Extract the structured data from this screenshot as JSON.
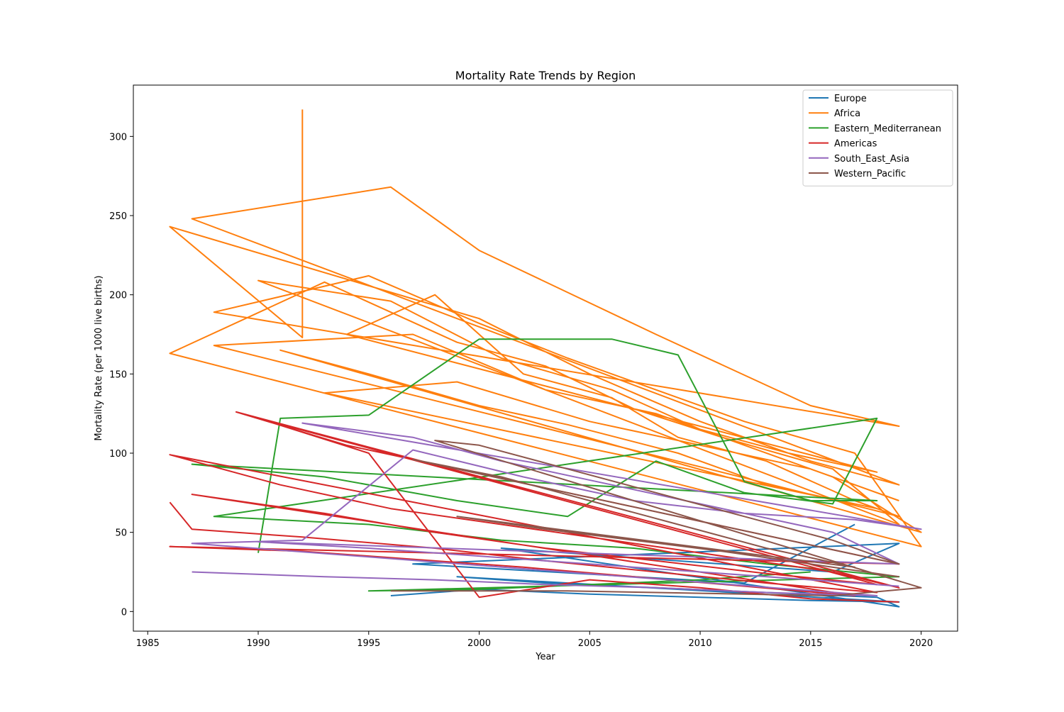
{
  "chart_data": {
    "type": "line",
    "title": "Mortality Rate Trends by Region",
    "xlabel": "Year",
    "ylabel": "Mortality Rate (per 1000 live births)",
    "xlim": [
      1984.35,
      2021.65
    ],
    "ylim": [
      -12.4,
      332.4
    ],
    "xticks": [
      1985,
      1990,
      1995,
      2000,
      2005,
      2010,
      2015,
      2020
    ],
    "yticks": [
      0,
      50,
      100,
      150,
      200,
      250,
      300
    ],
    "grid": false,
    "legend_position": "upper right",
    "series": [
      {
        "name": "Europe",
        "color": "#1f77b4",
        "x": [
          1996,
          2000,
          2005,
          2010,
          2015,
          2019,
          1999,
          2003,
          2008,
          2013,
          2018,
          2019,
          2001,
          2006,
          2011,
          2016,
          2019,
          1997,
          2002,
          2007,
          2012,
          2017
        ],
        "y": [
          10,
          14,
          11,
          9,
          7,
          6,
          22,
          18,
          15,
          12,
          9,
          3,
          40,
          35,
          30,
          25,
          43,
          30,
          26,
          22,
          18,
          55
        ]
      },
      {
        "name": "Africa",
        "color": "#ff7f0e",
        "x": [
          1992,
          1992,
          1986,
          2000,
          2005,
          2010,
          2015,
          2019,
          1987,
          1996,
          2000,
          2008,
          2015,
          2019,
          1988,
          1995,
          2000,
          2004,
          2008,
          2012,
          2017,
          2020,
          1986,
          1993,
          1999,
          2003,
          2007,
          2011,
          2016,
          2019,
          1990,
          1996,
          2001,
          2006,
          2010,
          2014,
          2018,
          1994,
          1998,
          2002,
          2006,
          2009,
          2013,
          2017,
          2019,
          1988,
          1997,
          2003,
          2008,
          2012,
          2016,
          2020,
          1991,
          1995,
          2000,
          2004,
          2009,
          2013,
          2018,
          1993,
          1999,
          2005,
          2010,
          2015,
          2019
        ],
        "y": [
          317,
          173,
          243,
          185,
          150,
          120,
          95,
          80,
          248,
          268,
          228,
          175,
          130,
          117,
          189,
          212,
          182,
          160,
          140,
          120,
          100,
          41,
          163,
          208,
          170,
          155,
          128,
          110,
          90,
          55,
          209,
          196,
          160,
          140,
          115,
          100,
          88,
          175,
          200,
          150,
          135,
          110,
          95,
          70,
          60,
          168,
          175,
          140,
          125,
          105,
          85,
          50,
          165,
          150,
          130,
          118,
          100,
          80,
          65,
          138,
          145,
          120,
          105,
          90,
          70
        ]
      },
      {
        "name": "Eastern_Mediterranean",
        "color": "#2ca02c",
        "x": [
          1990,
          1991,
          1995,
          2000,
          2006,
          2009,
          2012,
          2015,
          2018,
          1987,
          1993,
          1999,
          2004,
          2008,
          2012,
          2016,
          2018,
          1988,
          1995,
          2001,
          2007,
          2013,
          2019,
          1995,
          2000,
          2005,
          2010,
          2015
        ],
        "y": [
          37,
          122,
          124,
          172,
          172,
          162,
          82,
          70,
          70,
          93,
          85,
          70,
          60,
          95,
          75,
          68,
          122,
          60,
          55,
          45,
          40,
          30,
          22,
          13,
          14,
          17,
          20,
          25
        ]
      },
      {
        "name": "Americas",
        "color": "#d62728",
        "x": [
          1986,
          1987,
          1992,
          1998,
          2003,
          2008,
          2013,
          2018,
          1986,
          1991,
          1996,
          2001,
          2006,
          2011,
          2016,
          2019,
          1989,
          1994,
          1999,
          2004,
          2009,
          2014,
          2019,
          1986,
          1992,
          1997,
          2002,
          2007,
          2012,
          2017,
          1987,
          1993,
          1998,
          2003,
          2008,
          2013,
          2018,
          1990,
          1995,
          2000,
          2005,
          2010,
          2015,
          2019
        ],
        "y": [
          69,
          52,
          47,
          40,
          32,
          25,
          18,
          12,
          99,
          80,
          65,
          55,
          45,
          35,
          25,
          15,
          126,
          105,
          90,
          75,
          60,
          45,
          30,
          41,
          38,
          33,
          28,
          22,
          16,
          10,
          74,
          62,
          50,
          40,
          32,
          24,
          17,
          122,
          100,
          9,
          20,
          15,
          8,
          6
        ]
      },
      {
        "name": "South_East_Asia",
        "color": "#9467bd",
        "x": [
          1987,
          1993,
          1998,
          2003,
          2008,
          2013,
          2018,
          1987,
          1992,
          1997,
          2002,
          2007,
          2012,
          2017,
          2020,
          1992,
          1997,
          2001,
          2006,
          2011,
          2016,
          2019,
          1990,
          1995,
          2000,
          2005,
          2010,
          2015,
          2019
        ],
        "y": [
          25,
          22,
          20,
          17,
          15,
          12,
          10,
          43,
          45,
          102,
          85,
          70,
          62,
          58,
          52,
          119,
          110,
          95,
          80,
          65,
          50,
          30,
          44,
          40,
          35,
          30,
          25,
          20,
          16
        ]
      },
      {
        "name": "Western_Pacific",
        "color": "#8c564b",
        "x": [
          1996,
          2000,
          2004,
          2008,
          2012,
          2016,
          2020,
          1998,
          2000,
          2004,
          2008,
          2012,
          2016,
          2019,
          1997,
          2001,
          2005,
          2009,
          2013,
          2017,
          1999,
          2003,
          2007,
          2011,
          2015,
          2019
        ],
        "y": [
          13,
          13,
          13,
          12,
          11,
          10,
          15,
          108,
          105,
          90,
          75,
          60,
          45,
          30,
          96,
          85,
          70,
          55,
          40,
          28,
          60,
          52,
          45,
          38,
          30,
          22
        ]
      }
    ]
  }
}
